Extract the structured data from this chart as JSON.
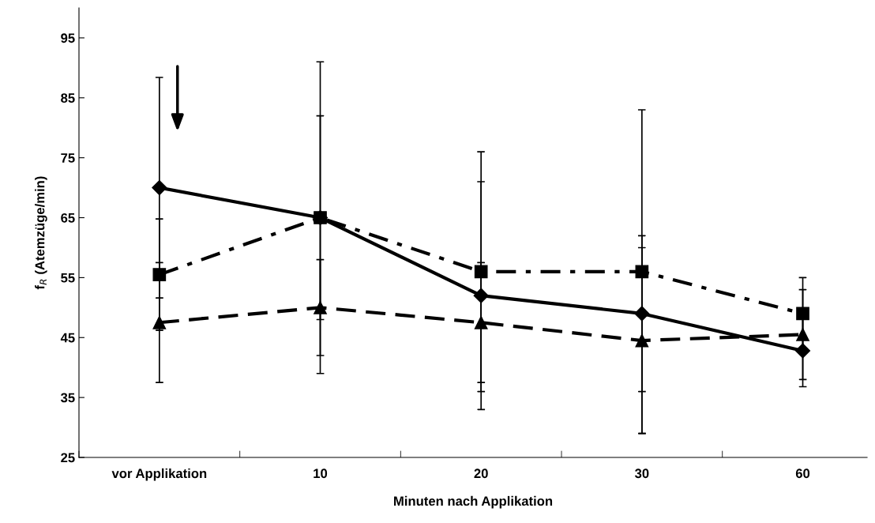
{
  "chart_data": {
    "type": "line",
    "xlabel": "Minuten nach Applikation",
    "ylabel": "f$_{R}$ (Atemzüge/min)",
    "categories": [
      "vor Applikation",
      "10",
      "20",
      "30",
      "60"
    ],
    "series": [
      {
        "color": "#000000",
        "marker": "diamond",
        "line_style": "solid",
        "values": [
          70,
          65,
          52,
          49,
          42.8
        ],
        "errors": [
          18.4,
          26,
          19,
          13,
          6
        ]
      },
      {
        "color": "#000000",
        "marker": "square",
        "line_style": "dashdot",
        "values": [
          55.5,
          65,
          56,
          56,
          49
        ],
        "errors": [
          9.3,
          17,
          20,
          27,
          6
        ]
      },
      {
        "color": "#000000",
        "marker": "triangle",
        "line_style": "dashed",
        "values": [
          47.5,
          50,
          47.5,
          44.5,
          45.5
        ],
        "errors": [
          10,
          8,
          10,
          15.5,
          7.5
        ]
      }
    ],
    "ylim": [
      25,
      100
    ],
    "yticks": [
      25,
      35,
      45,
      55,
      65,
      75,
      85,
      95
    ],
    "grid": false,
    "legend": false
  }
}
